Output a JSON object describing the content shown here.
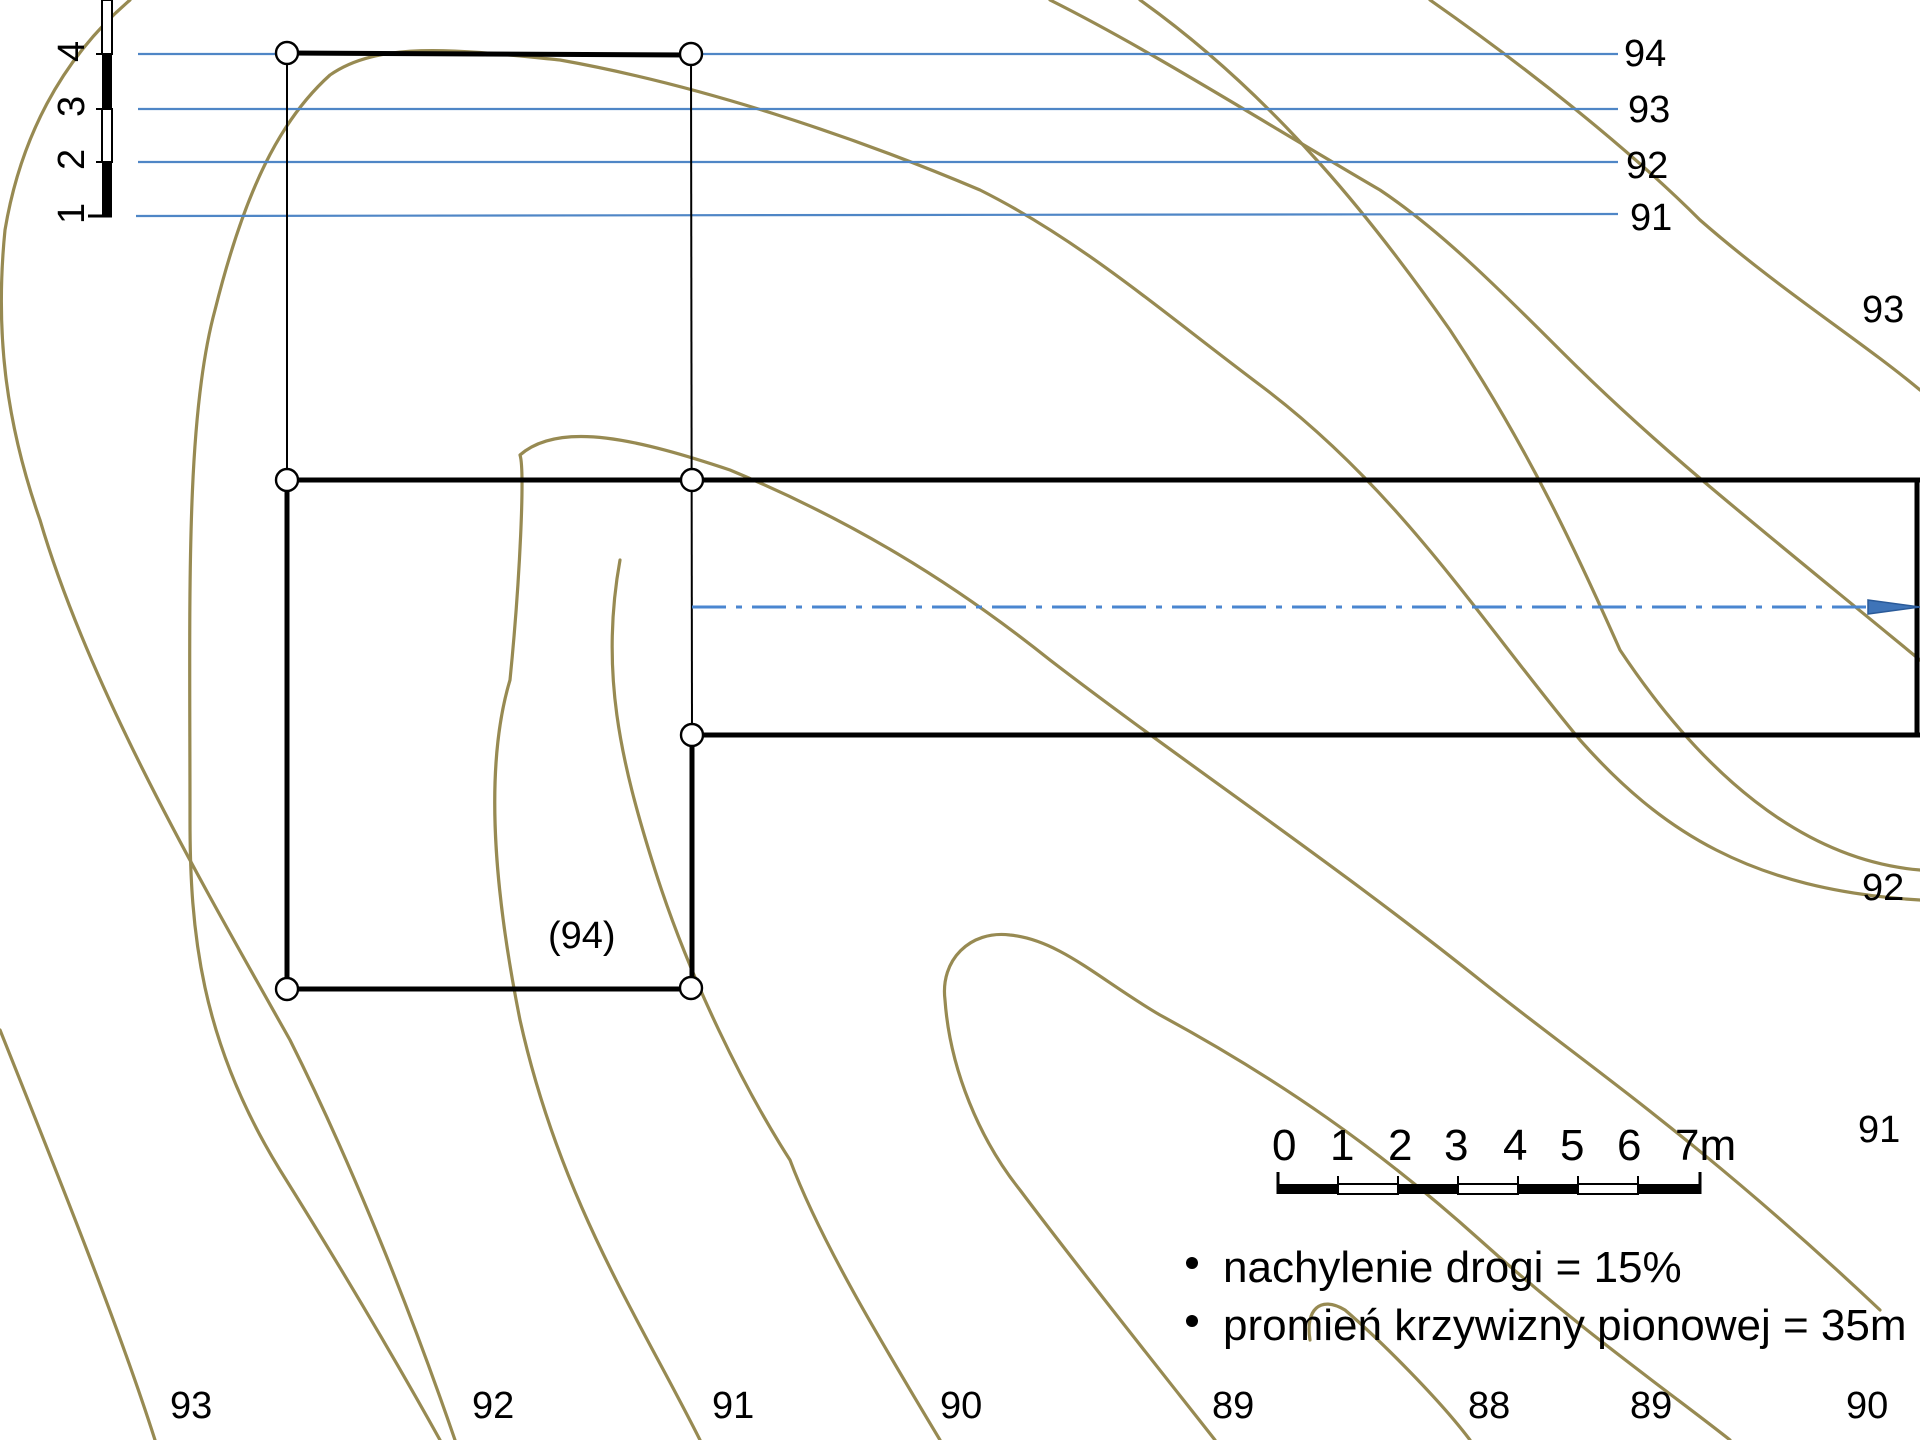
{
  "contour_labels": [
    {
      "id": "c93-right",
      "text": "93"
    },
    {
      "id": "c92-right",
      "text": "92"
    },
    {
      "id": "c91-right",
      "text": "91"
    },
    {
      "id": "c93-bottom",
      "text": "93"
    },
    {
      "id": "c92-bottom",
      "text": "92"
    },
    {
      "id": "c91-bottom",
      "text": "91"
    },
    {
      "id": "c90-bottom",
      "text": "90"
    },
    {
      "id": "c89-bottom",
      "text": "89"
    },
    {
      "id": "c88-bottom",
      "text": "88"
    },
    {
      "id": "c89b-bottom",
      "text": "89"
    },
    {
      "id": "c90b-bottom",
      "text": "90"
    }
  ],
  "profile_lines": {
    "labels": [
      "94",
      "93",
      "92",
      "91"
    ]
  },
  "vertical_scale": {
    "labels": [
      "1",
      "2",
      "3",
      "4"
    ]
  },
  "spot_height": "(94)",
  "scale_bar": {
    "labels": [
      "0",
      "1",
      "2",
      "3",
      "4",
      "5",
      "6",
      "7m"
    ]
  },
  "notes": [
    "nachylenie drogi = 15%",
    "promień krzywizny pionowej = 35m"
  ],
  "colors": {
    "contour": "#978a52",
    "level_line": "#4f86c6",
    "road_axis": "#4a86d0",
    "outline": "#000000"
  }
}
